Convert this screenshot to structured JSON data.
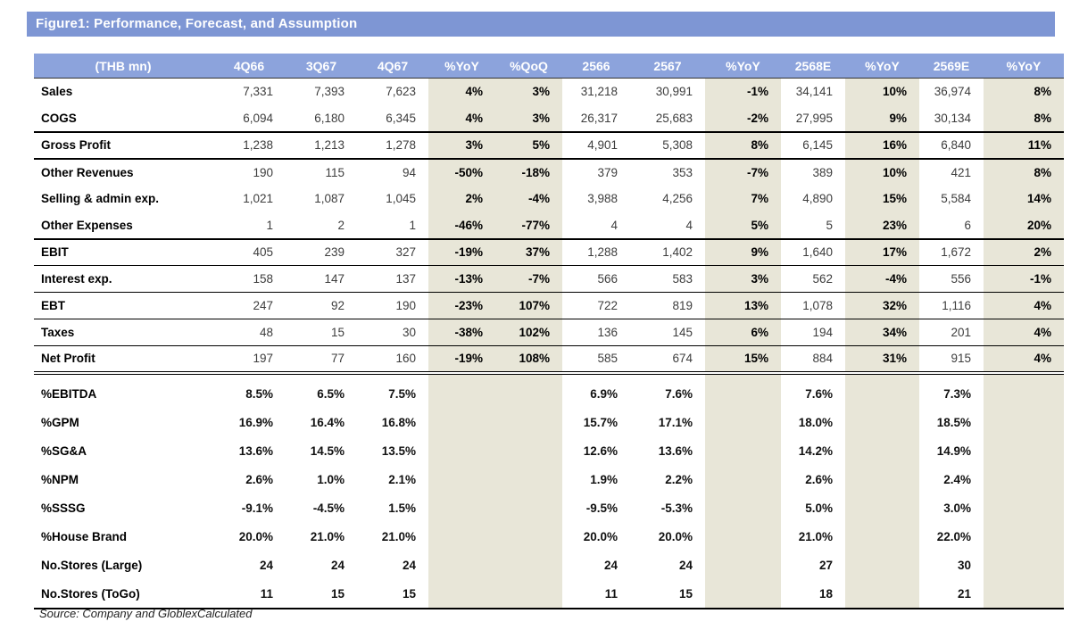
{
  "title": "Figure1: Performance, Forecast, and Assumption",
  "source_note": "Source: Company and GloblexCalculated",
  "colors": {
    "title_bar_bg": "#7E96D4",
    "header_row_bg": "#8CA3DC",
    "shaded_column_bg": "#E8E6D8",
    "header_text": "#FFFFFF"
  },
  "table": {
    "columns": [
      "(THB mn)",
      "4Q66",
      "3Q67",
      "4Q67",
      "%YoY",
      "%QoQ",
      "2566",
      "2567",
      "%YoY",
      "2568E",
      "%YoY",
      "2569E",
      "%YoY"
    ],
    "shaded_column_indexes": [
      4,
      5,
      8,
      10,
      12
    ],
    "rows": [
      {
        "label": "Sales",
        "section": "pnl",
        "rules": "",
        "values": [
          "7,331",
          "7,393",
          "7,623",
          "4%",
          "3%",
          "31,218",
          "30,991",
          "-1%",
          "34,141",
          "10%",
          "36,974",
          "8%"
        ]
      },
      {
        "label": "COGS",
        "section": "pnl",
        "rules": "",
        "values": [
          "6,094",
          "6,180",
          "6,345",
          "4%",
          "3%",
          "26,317",
          "25,683",
          "-2%",
          "27,995",
          "9%",
          "30,134",
          "8%"
        ]
      },
      {
        "label": "Gross Profit",
        "section": "pnl",
        "rules": "top-thick bottom-thick",
        "values": [
          "1,238",
          "1,213",
          "1,278",
          "3%",
          "5%",
          "4,901",
          "5,308",
          "8%",
          "6,145",
          "16%",
          "6,840",
          "11%"
        ]
      },
      {
        "label": "Other Revenues",
        "section": "pnl",
        "rules": "",
        "values": [
          "190",
          "115",
          "94",
          "-50%",
          "-18%",
          "379",
          "353",
          "-7%",
          "389",
          "10%",
          "421",
          "8%"
        ]
      },
      {
        "label": "Selling & admin exp.",
        "section": "pnl",
        "rules": "",
        "values": [
          "1,021",
          "1,087",
          "1,045",
          "2%",
          "-4%",
          "3,988",
          "4,256",
          "7%",
          "4,890",
          "15%",
          "5,584",
          "14%"
        ]
      },
      {
        "label": "Other Expenses",
        "section": "pnl",
        "rules": "",
        "values": [
          "1",
          "2",
          "1",
          "-46%",
          "-77%",
          "4",
          "4",
          "5%",
          "5",
          "23%",
          "6",
          "20%"
        ]
      },
      {
        "label": "EBIT",
        "section": "pnl",
        "rules": "top-thick bottom-thin",
        "values": [
          "405",
          "239",
          "327",
          "-19%",
          "37%",
          "1,288",
          "1,402",
          "9%",
          "1,640",
          "17%",
          "1,672",
          "2%"
        ]
      },
      {
        "label": "Interest exp.",
        "section": "pnl",
        "rules": "bottom-thin",
        "values": [
          "158",
          "147",
          "137",
          "-13%",
          "-7%",
          "566",
          "583",
          "3%",
          "562",
          "-4%",
          "556",
          "-1%"
        ]
      },
      {
        "label": "EBT",
        "section": "pnl",
        "rules": "bottom-thin",
        "values": [
          "247",
          "92",
          "190",
          "-23%",
          "107%",
          "722",
          "819",
          "13%",
          "1,078",
          "32%",
          "1,116",
          "4%"
        ]
      },
      {
        "label": "Taxes",
        "section": "pnl",
        "rules": "bottom-thin",
        "values": [
          "48",
          "15",
          "30",
          "-38%",
          "102%",
          "136",
          "145",
          "6%",
          "194",
          "34%",
          "201",
          "4%"
        ]
      },
      {
        "label": "Net Profit",
        "section": "pnl",
        "rules": "bottom-double",
        "values": [
          "197",
          "77",
          "160",
          "-19%",
          "108%",
          "585",
          "674",
          "15%",
          "884",
          "31%",
          "915",
          "4%"
        ]
      },
      {
        "label": "%EBITDA",
        "section": "ratios",
        "rules": "",
        "values": [
          "8.5%",
          "6.5%",
          "7.5%",
          "",
          "",
          "6.9%",
          "7.6%",
          "",
          "7.6%",
          "",
          "7.3%",
          ""
        ]
      },
      {
        "label": "%GPM",
        "section": "ratios",
        "rules": "",
        "values": [
          "16.9%",
          "16.4%",
          "16.8%",
          "",
          "",
          "15.7%",
          "17.1%",
          "",
          "18.0%",
          "",
          "18.5%",
          ""
        ]
      },
      {
        "label": "%SG&A",
        "section": "ratios",
        "rules": "",
        "values": [
          "13.6%",
          "14.5%",
          "13.5%",
          "",
          "",
          "12.6%",
          "13.6%",
          "",
          "14.2%",
          "",
          "14.9%",
          ""
        ]
      },
      {
        "label": "%NPM",
        "section": "ratios",
        "rules": "",
        "values": [
          "2.6%",
          "1.0%",
          "2.1%",
          "",
          "",
          "1.9%",
          "2.2%",
          "",
          "2.6%",
          "",
          "2.4%",
          ""
        ]
      },
      {
        "label": "%SSSG",
        "section": "ratios",
        "rules": "",
        "values": [
          "-9.1%",
          "-4.5%",
          "1.5%",
          "",
          "",
          "-9.5%",
          "-5.3%",
          "",
          "5.0%",
          "",
          "3.0%",
          ""
        ]
      },
      {
        "label": "%House Brand",
        "section": "ratios",
        "rules": "",
        "values": [
          "20.0%",
          "21.0%",
          "21.0%",
          "",
          "",
          "20.0%",
          "20.0%",
          "",
          "21.0%",
          "",
          "22.0%",
          ""
        ]
      },
      {
        "label": "No.Stores (Large)",
        "section": "ratios",
        "rules": "",
        "values": [
          "24",
          "24",
          "24",
          "",
          "",
          "24",
          "24",
          "",
          "27",
          "",
          "30",
          ""
        ]
      },
      {
        "label": "No.Stores (ToGo)",
        "section": "ratios",
        "rules": "",
        "values": [
          "11",
          "15",
          "15",
          "",
          "",
          "11",
          "15",
          "",
          "18",
          "",
          "21",
          ""
        ]
      }
    ]
  }
}
